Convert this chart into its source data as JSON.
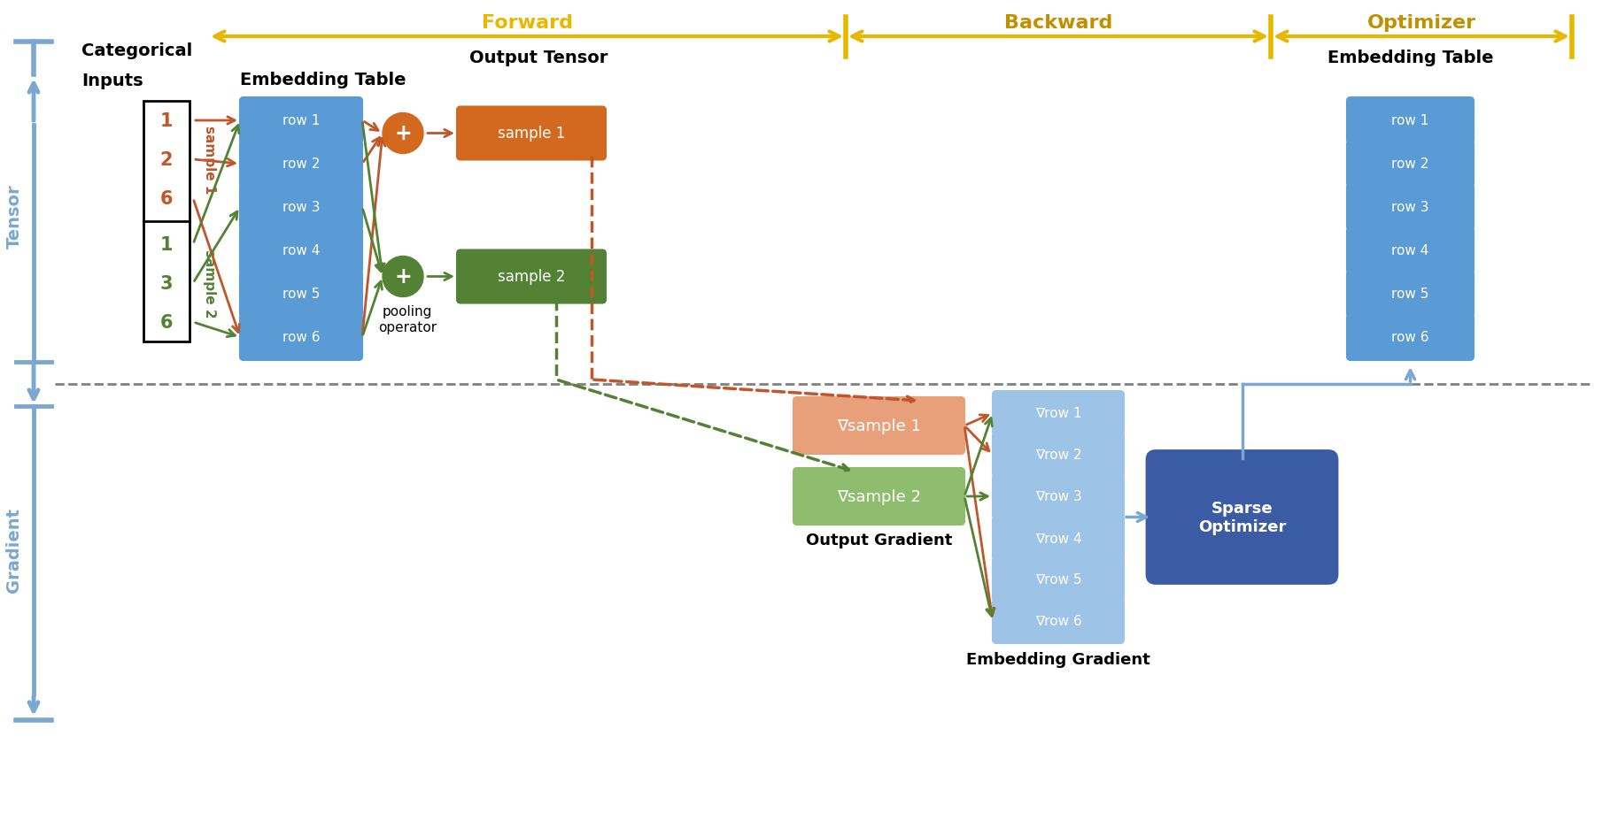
{
  "bg_color": "#ffffff",
  "blue_row_color": "#5B9BD5",
  "light_blue_row_color": "#9DC3E6",
  "orange_sample_color": "#D2691E",
  "green_sample_color": "#548235",
  "orange_grad_color": "#E8A07A",
  "green_grad_color": "#8FBD6E",
  "blue_optimizer_color": "#3B5BA5",
  "arrow_orange": "#C0562A",
  "arrow_green": "#548235",
  "arrow_blue": "#7BA7D0",
  "arrow_gold": "#E8B800",
  "dark_gold": "#C09000",
  "text_white": "#ffffff",
  "label_blue": "#7BA7D0",
  "rows": [
    "row 1",
    "row 2",
    "row 3",
    "row 4",
    "row 5",
    "row 6"
  ],
  "grad_rows": [
    "∇row 1",
    "∇row 2",
    "∇row 3",
    "∇row 4",
    "∇row 5",
    "∇row 6"
  ],
  "forward_label": "Forward",
  "backward_label": "Backward",
  "optimizer_label": "Optimizer",
  "embedding_table_label": "Embedding Table",
  "output_tensor_label": "Output Tensor",
  "output_gradient_label": "Output Gradient",
  "embedding_gradient_label": "Embedding Gradient",
  "tensor_label": "Tensor",
  "gradient_label": "Gradient",
  "pooling_label": "pooling\noperator",
  "sparse_optimizer_label": "Sparse\nOptimizer",
  "sample1_label": "sample 1",
  "sample2_label": "sample 2",
  "grad_sample1_label": "∇sample 1",
  "grad_sample2_label": "∇sample 2",
  "sample1_vals": [
    "1",
    "2",
    "6"
  ],
  "sample2_vals": [
    "1",
    "3",
    "6"
  ],
  "sample1_row_indices": [
    0,
    1,
    5
  ],
  "sample2_row_indices": [
    0,
    2,
    5
  ],
  "categorical_line1": "Categorical",
  "categorical_line2": "Inputs"
}
